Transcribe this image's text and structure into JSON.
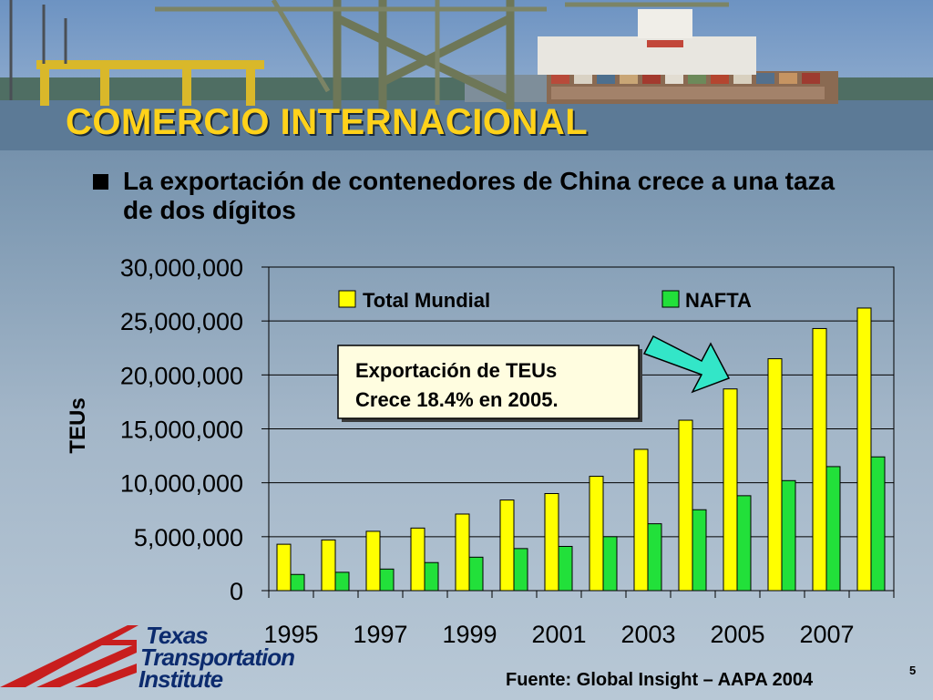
{
  "slide": {
    "title": "COMERCIO INTERNACIONAL",
    "bullet": "La exportación de contenedores de China crece a una taza de dos dígitos",
    "source": "Fuente: Global Insight – AAPA 2004",
    "page_number": "5"
  },
  "logo": {
    "line1": "Texas",
    "line2": "Transportation",
    "line3": "Institute"
  },
  "colors": {
    "title": "#ffd21a",
    "total_mundial": "#ffff00",
    "nafta": "#22e03a",
    "callout_arrow": "#33e6c8"
  },
  "chart_data": {
    "type": "bar",
    "categories": [
      "1995",
      "1996",
      "1997",
      "1998",
      "1999",
      "2000",
      "2001",
      "2002",
      "2003",
      "2004",
      "2005",
      "2006",
      "2007",
      "2008"
    ],
    "x_tick_labels": [
      "1995",
      "",
      "1997",
      "",
      "1999",
      "",
      "2001",
      "",
      "2003",
      "",
      "2005",
      "",
      "2007",
      ""
    ],
    "series": [
      {
        "name": "Total Mundial",
        "color": "#ffff00",
        "values": [
          4300000,
          4700000,
          5500000,
          5800000,
          7100000,
          8400000,
          9000000,
          10600000,
          13100000,
          15800000,
          18700000,
          21500000,
          24300000,
          26200000
        ]
      },
      {
        "name": "NAFTA",
        "color": "#22e03a",
        "values": [
          1500000,
          1700000,
          2000000,
          2600000,
          3100000,
          3900000,
          4100000,
          5000000,
          6200000,
          7500000,
          8800000,
          10200000,
          11500000,
          12400000
        ]
      }
    ],
    "title": "",
    "xlabel": "",
    "ylabel": "TEUs",
    "ylim": [
      0,
      30000000
    ],
    "y_ticks": [
      0,
      5000000,
      10000000,
      15000000,
      20000000,
      25000000,
      30000000
    ],
    "y_tick_labels": [
      "0",
      "5,000,000",
      "10,000,000",
      "15,000,000",
      "20,000,000",
      "25,000,000",
      "30,000,000"
    ],
    "grid": true,
    "legend_position": "top",
    "annotation": {
      "line1": "Exportación de TEUs",
      "line2": "Crece  18.4% en 2005."
    }
  }
}
